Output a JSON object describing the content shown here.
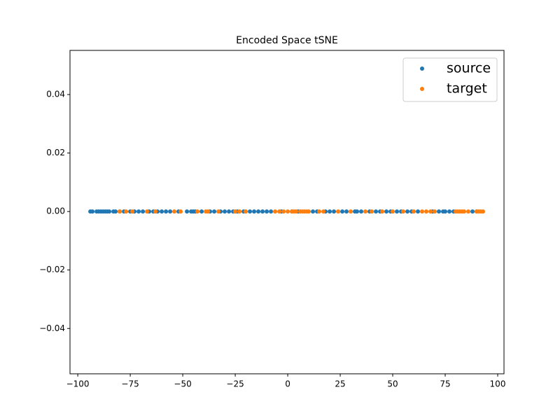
{
  "chart_data": {
    "type": "scatter",
    "title": "Encoded Space tSNE",
    "series": [
      {
        "name": "source",
        "color": "#1f77b4",
        "x": [
          -94,
          -93,
          -91,
          -90,
          -89,
          -88,
          -87,
          -86,
          -85,
          -83,
          -82,
          -80,
          -78,
          -75,
          -73,
          -71,
          -69,
          -66,
          -64,
          -62,
          -60,
          -58,
          -56,
          -52,
          -48,
          -46,
          -45,
          -44,
          -41,
          -37,
          -35,
          -32,
          -30,
          -28,
          -26,
          -24,
          -21,
          -18,
          -16,
          -14,
          -12,
          -10,
          -8,
          -3,
          2,
          5,
          12,
          14,
          18,
          20,
          22,
          26,
          28,
          32,
          33,
          35,
          39,
          42,
          44,
          47,
          49,
          52,
          54,
          57,
          59,
          62,
          69,
          72,
          74,
          75,
          77,
          79,
          88,
          90
        ],
        "values": [
          0,
          0,
          0,
          0,
          0,
          0,
          0,
          0,
          0,
          0,
          0,
          0,
          0,
          0,
          0,
          0,
          0,
          0,
          0,
          0,
          0,
          0,
          0,
          0,
          0,
          0,
          0,
          0,
          0,
          0,
          0,
          0,
          0,
          0,
          0,
          0,
          0,
          0,
          0,
          0,
          0,
          0,
          0,
          0,
          0,
          0,
          0,
          0,
          0,
          0,
          0,
          0,
          0,
          0,
          0,
          0,
          0,
          0,
          0,
          0,
          0,
          0,
          0,
          0,
          0,
          0,
          0,
          0,
          0,
          0,
          0,
          0,
          0,
          0
        ]
      },
      {
        "name": "target",
        "color": "#ff7f0e",
        "x": [
          -80,
          -77,
          -74,
          -67,
          -63,
          -54,
          -51,
          -43,
          -39,
          -38,
          -33,
          -25,
          -23,
          -20,
          -6,
          -4,
          -2,
          0,
          2,
          3,
          4,
          6,
          7,
          8,
          9,
          10,
          15,
          17,
          24,
          30,
          37,
          40,
          45,
          50,
          55,
          60,
          64,
          66,
          68,
          70,
          80,
          81,
          82,
          83,
          84,
          86,
          90,
          91,
          92,
          93
        ],
        "values": [
          0,
          0,
          0,
          0,
          0,
          0,
          0,
          0,
          0,
          0,
          0,
          0,
          0,
          0,
          0,
          0,
          0,
          0,
          0,
          0,
          0,
          0,
          0,
          0,
          0,
          0,
          0,
          0,
          0,
          0,
          0,
          0,
          0,
          0,
          0,
          0,
          0,
          0,
          0,
          0,
          0,
          0,
          0,
          0,
          0,
          0,
          0,
          0,
          0,
          0
        ]
      }
    ],
    "xlim": [
      -103.7,
      103
    ],
    "ylim": [
      -0.0555,
      0.0551
    ],
    "xticks": [
      {
        "value": -100,
        "label": "−100"
      },
      {
        "value": -75,
        "label": "−75"
      },
      {
        "value": -50,
        "label": "−50"
      },
      {
        "value": -25,
        "label": "−25"
      },
      0,
      25,
      50,
      75,
      100
    ],
    "yticks": [
      {
        "value": -0.04,
        "label": "−0.04"
      },
      {
        "value": -0.02,
        "label": "−0.02"
      },
      {
        "value": 0,
        "label": "0.00"
      },
      {
        "value": 0.02,
        "label": "0.02"
      },
      {
        "value": 0.04,
        "label": "0.04"
      }
    ],
    "legend": "upper right"
  }
}
